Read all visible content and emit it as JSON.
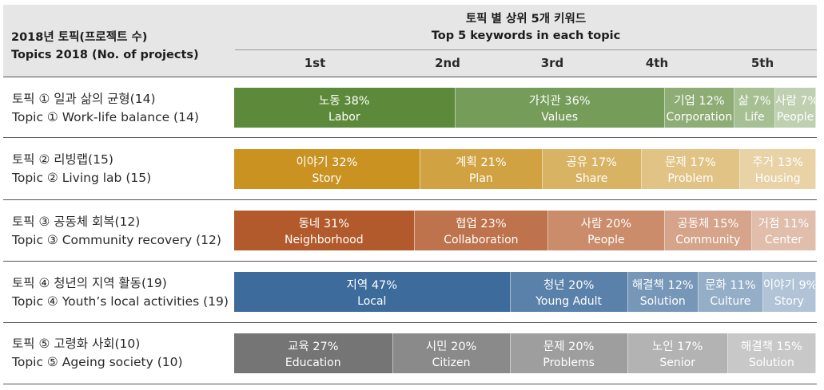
{
  "header": {
    "topics_ko": "2018년 토픽(프로젝트 수)",
    "topics_en": "Topics 2018 (No. of projects)",
    "title_ko": "토픽 별 상위 5개 키워드",
    "title_en": "Top 5 keywords in each topic",
    "ranks": [
      "1st",
      "2nd",
      "3rd",
      "4th",
      "5th"
    ]
  },
  "chart_data": {
    "type": "bar",
    "orientation": "horizontal-stacked",
    "title": "토픽 별 상위 5개 키워드 / Top 5 keywords in each topic",
    "unit": "%",
    "topics": [
      {
        "label_ko": "토픽 ① 일과 삶의 균형(14)",
        "label_en": "Topic ① Work-life balance (14)",
        "color": "#5d8a3a",
        "keywords": [
          {
            "ko": "노동",
            "pct": 38,
            "display": "38%",
            "en": "Labor"
          },
          {
            "ko": "가치관",
            "pct": 36,
            "display": "36%",
            "en": "Values"
          },
          {
            "ko": "기업",
            "pct": 12,
            "display": "12%",
            "en": "Corporation"
          },
          {
            "ko": "삶",
            "pct": 7,
            "display": "7%",
            "en": "Life"
          },
          {
            "ko": "사람",
            "pct": 7,
            "display": "7%",
            "en": "People"
          }
        ]
      },
      {
        "label_ko": "토픽 ② 리빙랩(15)",
        "label_en": "Topic ② Living lab (15)",
        "color": "#c99221",
        "keywords": [
          {
            "ko": "이야기",
            "pct": 32,
            "display": "32%",
            "en": "Story"
          },
          {
            "ko": "계획",
            "pct": 21,
            "display": "21%",
            "en": "Plan"
          },
          {
            "ko": "공유",
            "pct": 17,
            "display": "17%",
            "en": "Share"
          },
          {
            "ko": "문제",
            "pct": 17,
            "display": "17%",
            "en": "Problem"
          },
          {
            "ko": "주거",
            "pct": 13,
            "display": "13%",
            "en": "Housing"
          }
        ]
      },
      {
        "label_ko": "토픽 ③ 공동체 회복(12)",
        "label_en": "Topic ③ Community recovery (12)",
        "color": "#b35a2c",
        "keywords": [
          {
            "ko": "동네",
            "pct": 31,
            "display": "31%",
            "en": "Neighborhood"
          },
          {
            "ko": "협업",
            "pct": 23,
            "display": "23%",
            "en": "Collaboration"
          },
          {
            "ko": "사람",
            "pct": 20,
            "display": "20%",
            "en": "People"
          },
          {
            "ko": "공동체",
            "pct": 15,
            "display": "15%",
            "en": "Community"
          },
          {
            "ko": "거점",
            "pct": 11,
            "display": "11%",
            "en": "Center"
          }
        ]
      },
      {
        "label_ko": "토픽 ④ 청년의 지역 활동(19)",
        "label_en": "Topic ④ Youth’s local activities (19)",
        "color": "#3d6b9b",
        "keywords": [
          {
            "ko": "지역",
            "pct": 47,
            "display": "47%",
            "en": "Local"
          },
          {
            "ko": "청년",
            "pct": 20,
            "display": "20%",
            "en": "Young Adult"
          },
          {
            "ko": "해결책",
            "pct": 12,
            "display": "12%",
            "en": "Solution"
          },
          {
            "ko": "문화",
            "pct": 11,
            "display": "11%",
            "en": "Culture"
          },
          {
            "ko": "이야기",
            "pct": 9,
            "display": "9%",
            "en": "Story"
          }
        ]
      },
      {
        "label_ko": "토픽 ⑤ 고령화 사회(10)",
        "label_en": "Topic ⑤ Ageing society (10)",
        "color": "#757575",
        "keywords": [
          {
            "ko": "교육",
            "pct": 27,
            "display": "27%",
            "en": "Education"
          },
          {
            "ko": "시민",
            "pct": 20,
            "display": "20%",
            "en": "Citizen"
          },
          {
            "ko": "문제",
            "pct": 20,
            "display": "20%",
            "en": "Problems"
          },
          {
            "ko": "노인",
            "pct": 17,
            "display": "17%",
            "en": "Senior"
          },
          {
            "ko": "해결책",
            "pct": 15,
            "display": "15%",
            "en": "Solution"
          }
        ]
      }
    ]
  }
}
